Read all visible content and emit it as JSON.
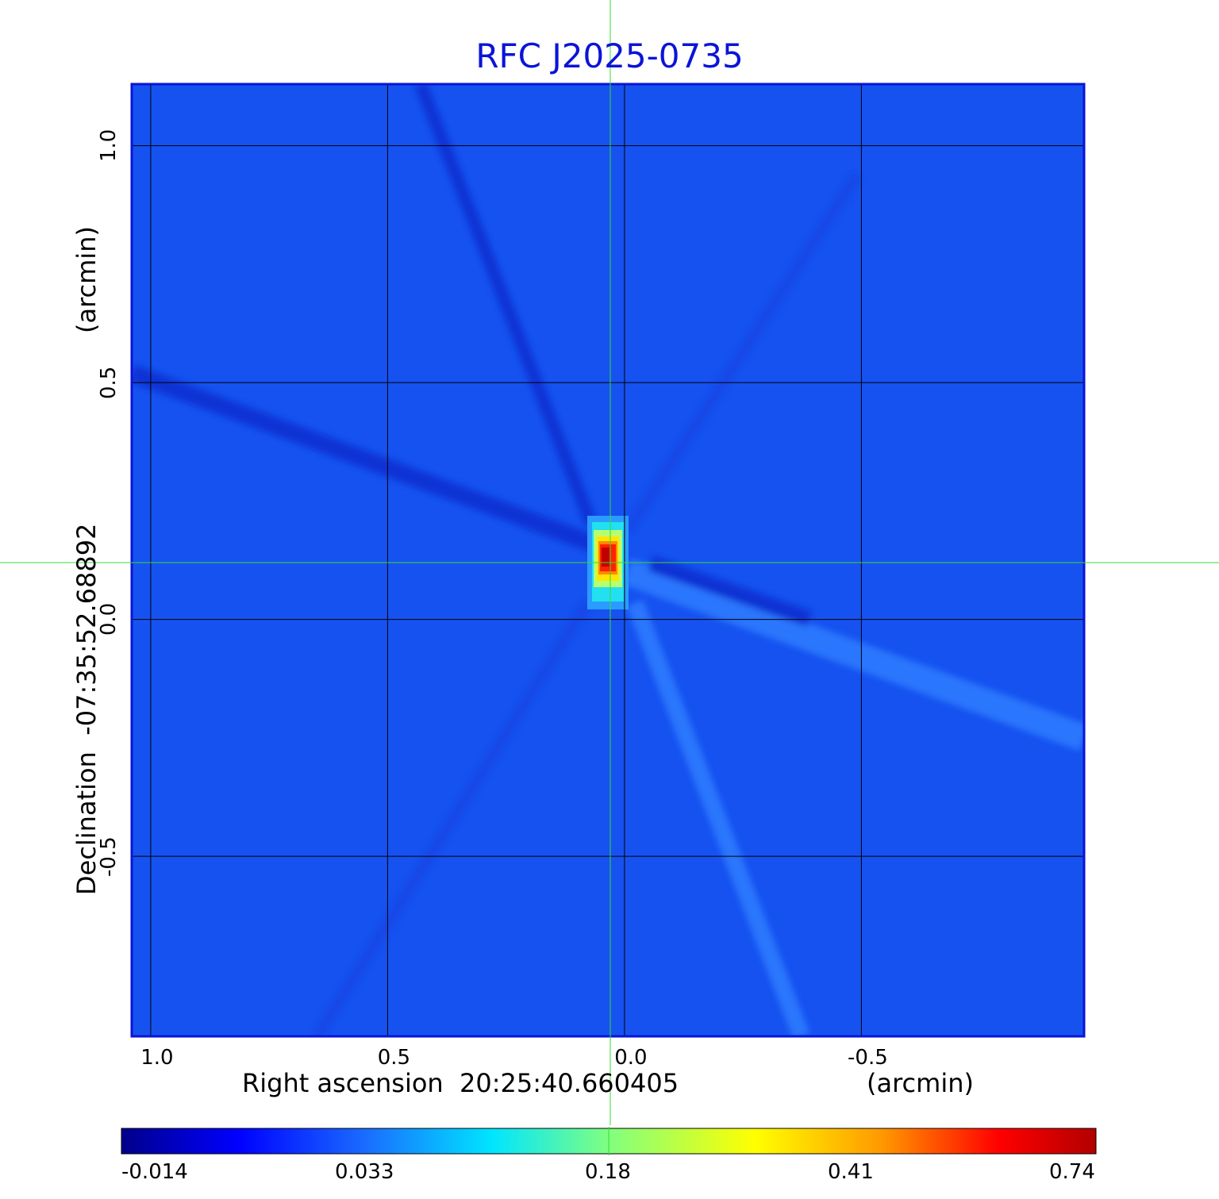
{
  "chart_data": {
    "type": "heatmap",
    "title": "RFC J2025-0735",
    "xlabel": "Right ascension  20:25:40.660405",
    "xunit": "(arcmin)",
    "ylabel": "Declination  -07:35:52.68892",
    "yunit": "(arcmin)",
    "x_range": [
      1.04,
      -0.97
    ],
    "y_range": [
      -0.88,
      1.13
    ],
    "x_ticks": [
      {
        "value": 1.0,
        "label": "1.0"
      },
      {
        "value": 0.5,
        "label": "0.5"
      },
      {
        "value": 0.0,
        "label": "0.0"
      },
      {
        "value": -0.5,
        "label": "-0.5"
      }
    ],
    "y_ticks": [
      {
        "value": 1.0,
        "label": "1.0"
      },
      {
        "value": 0.5,
        "label": "0.5"
      },
      {
        "value": 0.0,
        "label": "0.0"
      },
      {
        "value": -0.5,
        "label": "-0.5"
      }
    ],
    "grid": true,
    "crosshair": {
      "x": 0.03,
      "y": 0.12,
      "color": "#33dd33"
    },
    "peak": {
      "x": 0.035,
      "y": 0.135,
      "value": 0.74
    },
    "colorbar": {
      "ticks": [
        "-0.014",
        "0.033",
        "0.18",
        "0.41",
        "0.74"
      ],
      "colors": [
        "#00008b",
        "#0000ff",
        "#1a6cff",
        "#00e5ff",
        "#80ff80",
        "#ffff00",
        "#ff9900",
        "#ff0000",
        "#b30000"
      ]
    },
    "background_color": "#1652f0"
  }
}
